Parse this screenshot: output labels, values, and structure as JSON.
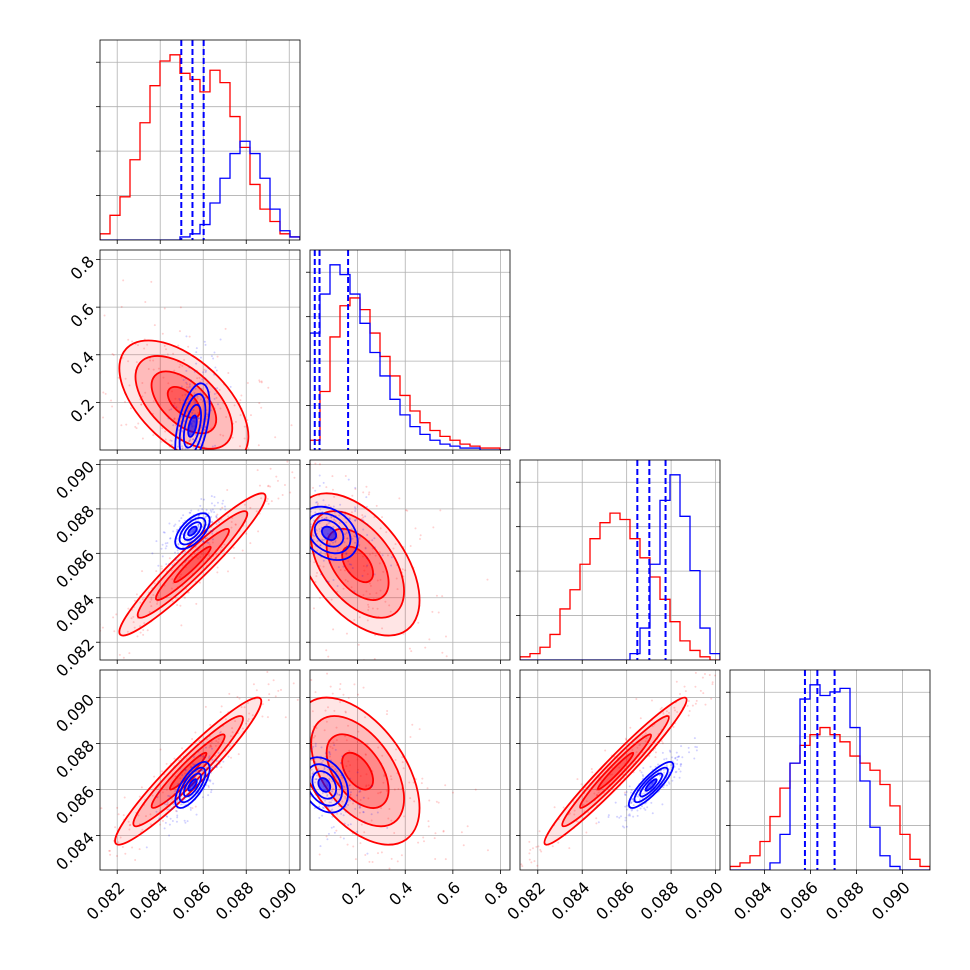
{
  "colors": {
    "red": "#ff0000",
    "blue": "#0000ff",
    "grid": "#b0b0b0",
    "axes": "#000000"
  },
  "chart_data": {
    "type": "corner",
    "grid": true,
    "params": [
      {
        "range": [
          0.0812,
          0.0905
        ],
        "ticks": [
          0.082,
          0.084,
          0.086,
          0.088,
          0.09
        ],
        "ticklabels": [
          "0.082",
          "0.084",
          "0.086",
          "0.088",
          "0.090"
        ]
      },
      {
        "range": [
          0.0,
          0.84
        ],
        "ticks": [
          0.2,
          0.4,
          0.6,
          0.8
        ],
        "ticklabels": [
          "0.2",
          "0.4",
          "0.6",
          "0.8"
        ]
      },
      {
        "range": [
          0.0812,
          0.0902
        ],
        "ticks": [
          0.082,
          0.084,
          0.086,
          0.088,
          0.09
        ],
        "ticklabels": [
          "0.082",
          "0.084",
          "0.086",
          "0.088",
          "0.090"
        ]
      },
      {
        "range": [
          0.0825,
          0.0912
        ],
        "ticks": [
          0.084,
          0.086,
          0.088,
          0.09
        ],
        "ticklabels": [
          "0.084",
          "0.086",
          "0.088",
          "0.090"
        ]
      }
    ],
    "series": [
      {
        "color": "#ff0000",
        "hist": [
          [
            2,
            8,
            14,
            26,
            38,
            50,
            58,
            60,
            54,
            52,
            48,
            55,
            51,
            40,
            30,
            18,
            10,
            6,
            2,
            1
          ],
          [
            5,
            30,
            58,
            74,
            78,
            72,
            60,
            48,
            38,
            28,
            20,
            14,
            10,
            7,
            5,
            3,
            2,
            1,
            1,
            0
          ],
          [
            1,
            2,
            4,
            8,
            16,
            22,
            30,
            38,
            43,
            46,
            44,
            38,
            32,
            26,
            19,
            12,
            6,
            3,
            1,
            0
          ],
          [
            1,
            2,
            4,
            8,
            15,
            23,
            30,
            35,
            38,
            40,
            38,
            36,
            32,
            30,
            28,
            24,
            18,
            10,
            3,
            1
          ]
        ],
        "pairs": [
          {
            "i": 0,
            "j": 1,
            "center": [
              0.0851,
              0.2
            ],
            "sd": [
              0.0015,
              0.13
            ],
            "rho": -0.55,
            "levels": [
              0.5,
              1.0,
              1.5,
              2.0
            ]
          },
          {
            "i": 0,
            "j": 2,
            "center": [
              0.0855,
              0.0855
            ],
            "sd": [
              0.0017,
              0.0016
            ],
            "rho": 0.95,
            "levels": [
              0.5,
              1.0,
              1.5,
              2.0
            ]
          },
          {
            "i": 1,
            "j": 2,
            "center": [
              0.2,
              0.0855
            ],
            "sd": [
              0.13,
              0.0016
            ],
            "rho": -0.5,
            "levels": [
              0.5,
              1.0,
              1.5,
              2.0
            ]
          },
          {
            "i": 0,
            "j": 3,
            "center": [
              0.0853,
              0.0868
            ],
            "sd": [
              0.0017,
              0.0016
            ],
            "rho": 0.95,
            "levels": [
              0.5,
              1.0,
              1.5,
              2.0
            ]
          },
          {
            "i": 1,
            "j": 3,
            "center": [
              0.2,
              0.0868
            ],
            "sd": [
              0.13,
              0.0016
            ],
            "rho": -0.5,
            "levels": [
              0.5,
              1.0,
              1.5,
              2.0
            ]
          },
          {
            "i": 2,
            "j": 3,
            "center": [
              0.0855,
              0.0868
            ],
            "sd": [
              0.0016,
              0.0016
            ],
            "rho": 0.97,
            "levels": [
              0.5,
              1.0,
              1.5,
              2.0
            ]
          }
        ]
      },
      {
        "color": "#0000ff",
        "quantiles": [
          [
            0.08498,
            0.0855,
            0.08602
          ],
          [
            0.02,
            0.04,
            0.16
          ],
          [
            0.08648,
            0.08702,
            0.08775
          ],
          [
            0.08576,
            0.0863,
            0.08705
          ]
        ],
        "hist": [
          [
            0,
            0,
            0,
            0,
            0,
            0,
            0,
            0,
            1,
            2,
            5,
            12,
            20,
            28,
            32,
            28,
            20,
            10,
            3,
            1
          ],
          [
            60,
            80,
            95,
            90,
            80,
            65,
            50,
            38,
            26,
            18,
            12,
            8,
            5,
            3,
            2,
            1,
            1,
            0,
            0,
            0
          ],
          [
            0,
            0,
            0,
            0,
            0,
            0,
            0,
            0,
            0,
            0,
            0,
            2,
            10,
            30,
            50,
            58,
            45,
            28,
            10,
            2
          ],
          [
            0,
            0,
            0,
            0,
            2,
            10,
            30,
            48,
            52,
            49,
            50,
            51,
            40,
            25,
            12,
            4,
            1,
            0,
            0,
            0
          ]
        ],
        "pairs": [
          {
            "i": 0,
            "j": 1,
            "center": [
              0.0855,
              0.1
            ],
            "sd": [
              0.0004,
              0.09
            ],
            "rho": 0.5,
            "levels": [
              0.5,
              1.0,
              1.5,
              2.0
            ]
          },
          {
            "i": 0,
            "j": 2,
            "center": [
              0.0855,
              0.087
            ],
            "sd": [
              0.0004,
              0.0004
            ],
            "rho": 0.6,
            "levels": [
              0.5,
              1.0,
              1.5,
              2.0
            ]
          },
          {
            "i": 1,
            "j": 2,
            "center": [
              0.08,
              0.0869
            ],
            "sd": [
              0.06,
              0.0006
            ],
            "rho": -0.3,
            "levels": [
              0.5,
              1.0,
              1.5,
              2.0
            ]
          },
          {
            "i": 0,
            "j": 3,
            "center": [
              0.0855,
              0.0862
            ],
            "sd": [
              0.0004,
              0.0005
            ],
            "rho": 0.7,
            "levels": [
              0.5,
              1.0,
              1.5,
              2.0
            ]
          },
          {
            "i": 1,
            "j": 3,
            "center": [
              0.06,
              0.0862
            ],
            "sd": [
              0.05,
              0.0006
            ],
            "rho": -0.3,
            "levels": [
              0.5,
              1.0,
              1.5,
              2.0
            ]
          },
          {
            "i": 2,
            "j": 3,
            "center": [
              0.0871,
              0.0862
            ],
            "sd": [
              0.0005,
              0.0005
            ],
            "rho": 0.85,
            "levels": [
              0.5,
              1.0,
              1.5,
              2.0
            ]
          }
        ]
      }
    ]
  }
}
